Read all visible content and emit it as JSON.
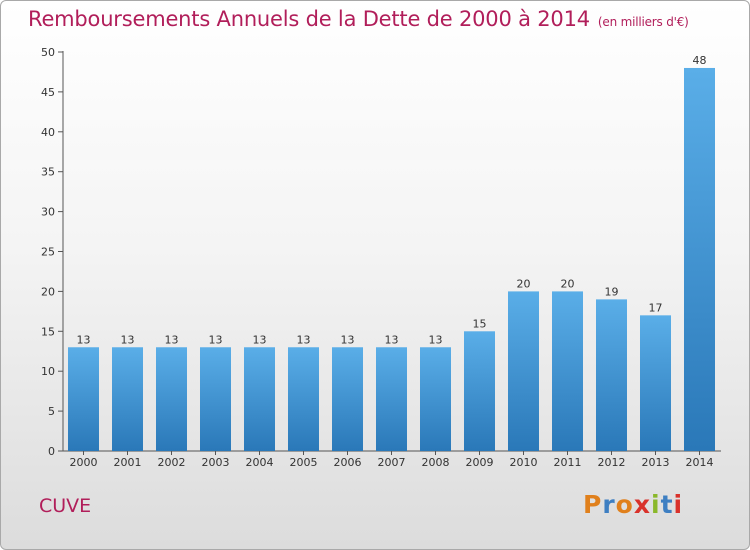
{
  "chart_data": {
    "type": "bar",
    "title": "Remboursements Annuels de la Dette de 2000 à 2014",
    "subtitle": "(en milliers d'€)",
    "categories": [
      "2000",
      "2001",
      "2002",
      "2003",
      "2004",
      "2005",
      "2006",
      "2007",
      "2008",
      "2009",
      "2010",
      "2011",
      "2012",
      "2013",
      "2014"
    ],
    "values": [
      13,
      13,
      13,
      13,
      13,
      13,
      13,
      13,
      13,
      15,
      20,
      20,
      19,
      17,
      48
    ],
    "data_labels": [
      "13",
      "13",
      "13",
      "13",
      "13",
      "13",
      "13",
      "13",
      "13",
      "15",
      "20",
      "20",
      "19",
      "17",
      "48"
    ],
    "ylim": [
      0,
      50
    ],
    "yticks": [
      "0",
      "5",
      "10",
      "15",
      "20",
      "25",
      "30",
      "35",
      "40",
      "45",
      "50"
    ],
    "xlabel": "",
    "ylabel": "",
    "grid": false,
    "legend": "none",
    "bar_color_top": "#5aaee8",
    "bar_color_bottom": "#2a78b8",
    "title_color": "#b11e5a"
  },
  "footer": {
    "commune": "CUVE",
    "logo": {
      "letters": [
        "P",
        "r",
        "o",
        "x",
        "i",
        "t",
        "i"
      ],
      "colors": [
        "#e0801c",
        "#3e7fc2",
        "#e0801c",
        "#d9322b",
        "#8ab82a",
        "#3e7fc2",
        "#d9322b"
      ]
    }
  }
}
